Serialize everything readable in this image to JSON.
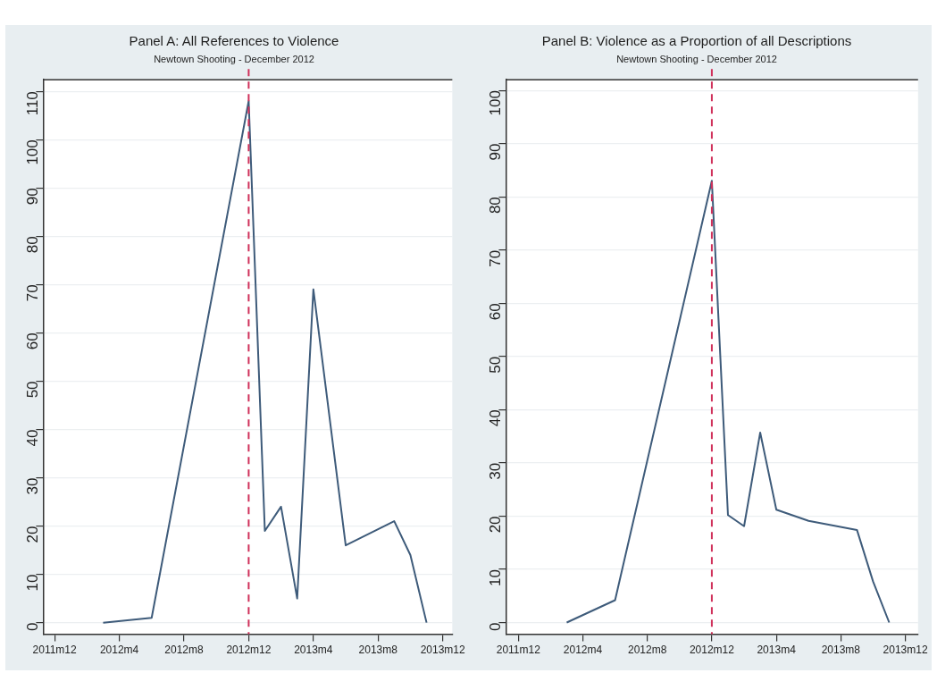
{
  "chart_data": [
    {
      "type": "line",
      "title": "Panel A: All References to Violence",
      "subtitle": "Newtown Shooting - December 2012",
      "x": [
        "2012-03",
        "2012-06",
        "2012-12",
        "2013-01",
        "2013-02",
        "2013-03",
        "2013-04",
        "2013-06",
        "2013-09",
        "2013-10",
        "2013-11"
      ],
      "series": [
        {
          "color": "#3e5b7a",
          "values": [
            0,
            1,
            108,
            19,
            24,
            5,
            69,
            16,
            21,
            14,
            0
          ]
        }
      ],
      "xlim": [
        "2011-11-10",
        "2013-12-19"
      ],
      "xticks": [
        {
          "value": "2011-12",
          "label": "2011m12"
        },
        {
          "value": "2012-04",
          "label": "2012m4"
        },
        {
          "value": "2012-08",
          "label": "2012m8"
        },
        {
          "value": "2012-12",
          "label": "2012m12"
        },
        {
          "value": "2013-04",
          "label": "2013m4"
        },
        {
          "value": "2013-08",
          "label": "2013m8"
        },
        {
          "value": "2013-12",
          "label": "2013m12"
        }
      ],
      "ylim": [
        -2.4,
        112.4
      ],
      "yticks": [
        0,
        10,
        20,
        30,
        40,
        50,
        60,
        70,
        80,
        90,
        100,
        110
      ],
      "ref_lines": [
        {
          "axis": "x",
          "value": "2012-12",
          "color": "#d0305a",
          "line_style": "dashed"
        }
      ],
      "grid": "y",
      "legend": false,
      "marker": "none",
      "line_style": "solid"
    },
    {
      "type": "line",
      "title": "Panel B: Violence as a Proportion of all Descriptions",
      "subtitle": "Newtown Shooting - December 2012",
      "x": [
        "2012-03",
        "2012-06",
        "2012-12",
        "2013-01",
        "2013-02",
        "2013-03",
        "2013-04",
        "2013-06",
        "2013-09",
        "2013-10",
        "2013-11"
      ],
      "series": [
        {
          "color": "#3e5b7a",
          "values": [
            0,
            4.2,
            83,
            20.2,
            18.1,
            35.7,
            21.2,
            19.1,
            17.4,
            7.7,
            0
          ]
        }
      ],
      "xlim": [
        "2011-11-08",
        "2013-12-25"
      ],
      "xticks": [
        {
          "value": "2011-12",
          "label": "2011m12"
        },
        {
          "value": "2012-04",
          "label": "2012m4"
        },
        {
          "value": "2012-08",
          "label": "2012m8"
        },
        {
          "value": "2012-12",
          "label": "2012m12"
        },
        {
          "value": "2013-04",
          "label": "2013m4"
        },
        {
          "value": "2013-08",
          "label": "2013m8"
        },
        {
          "value": "2013-12",
          "label": "2013m12"
        }
      ],
      "ylim": [
        -2.2,
        102
      ],
      "yticks": [
        0,
        10,
        20,
        30,
        40,
        50,
        60,
        70,
        80,
        90,
        100
      ],
      "ref_lines": [
        {
          "axis": "x",
          "value": "2012-12",
          "color": "#d0305a",
          "line_style": "dashed"
        }
      ],
      "grid": "y",
      "legend": false,
      "marker": "none",
      "line_style": "solid"
    }
  ]
}
